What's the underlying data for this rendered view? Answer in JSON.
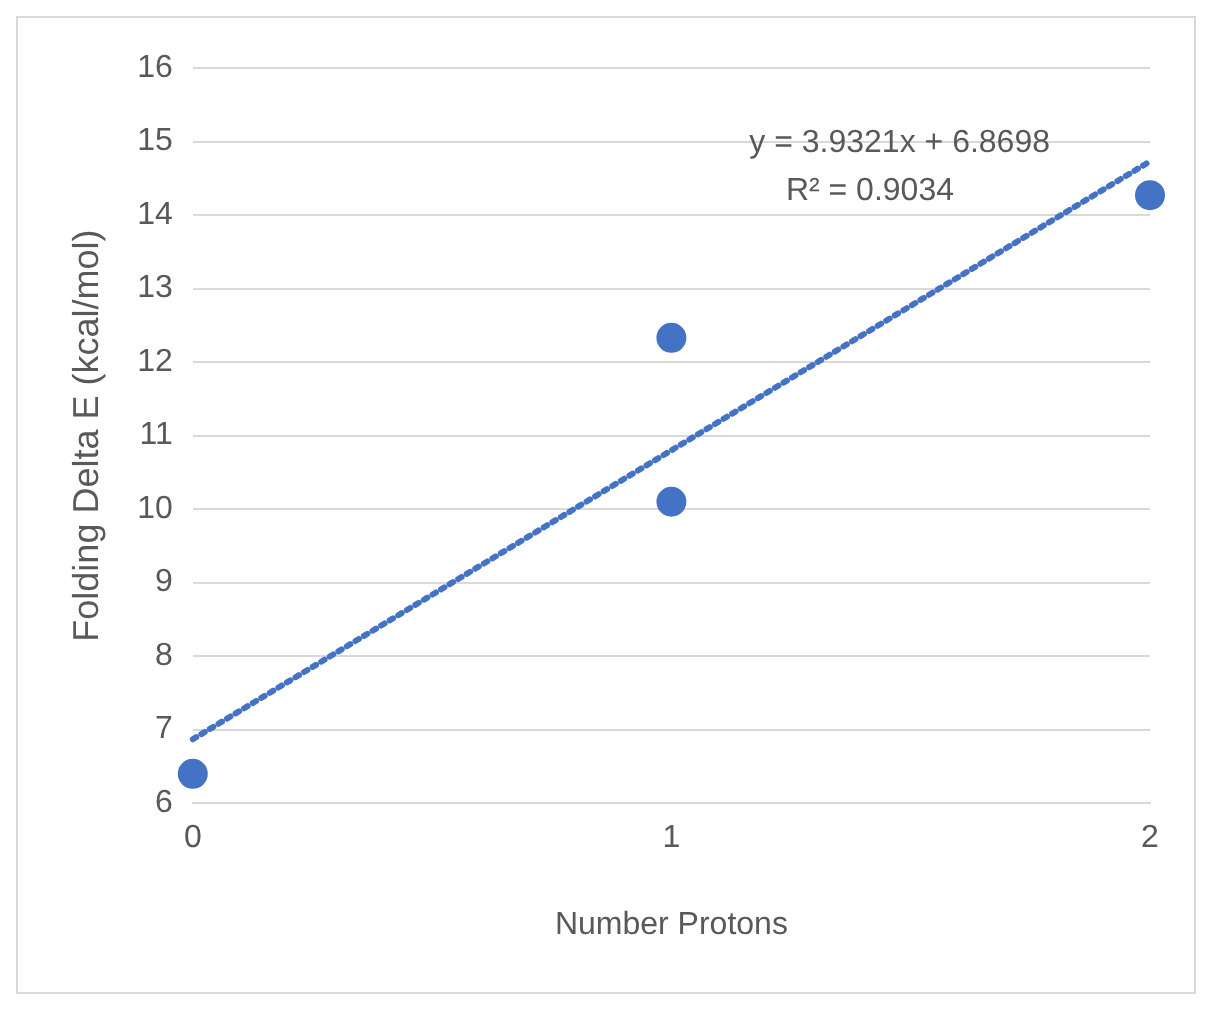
{
  "chart_data": {
    "type": "scatter",
    "xlabel": "Number Protons",
    "ylabel": "Folding Delta E (kcal/mol)",
    "xlim": [
      0,
      2
    ],
    "xticks": [
      0,
      1,
      2
    ],
    "ylim": [
      6,
      16
    ],
    "yticks": [
      6,
      7,
      8,
      9,
      10,
      11,
      12,
      13,
      14,
      15,
      16
    ],
    "grid": "y",
    "legend": false,
    "marker": "circle",
    "series": [
      {
        "color": "#4472c4",
        "x": [
          0,
          1,
          1,
          2
        ],
        "values": [
          6.4,
          12.33,
          10.1,
          14.27
        ]
      },
      {
        "type": "line",
        "color": "#4472c4",
        "line_style": "dotted",
        "marker": "none",
        "x": [
          0,
          2
        ],
        "values": [
          6.87,
          14.73
        ]
      }
    ],
    "annotations": [
      "y = 3.9321x + 6.8698",
      "R² = 0.9034"
    ]
  }
}
